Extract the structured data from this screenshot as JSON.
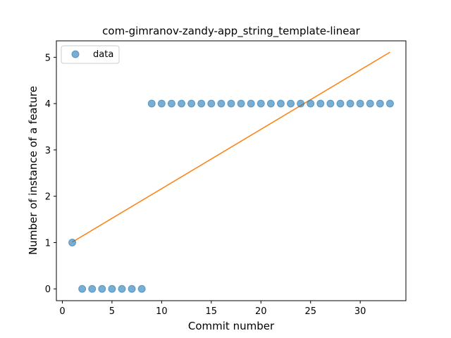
{
  "chart_data": {
    "type": "scatter",
    "title": "com-gimranov-zandy-app_string_template-linear",
    "xlabel": "Commit number",
    "ylabel": "Number of instance of a feature",
    "xlim": [
      -0.6,
      34.6
    ],
    "ylim": [
      -0.255,
      5.355
    ],
    "xticks": [
      0,
      5,
      10,
      15,
      20,
      25,
      30
    ],
    "yticks": [
      0,
      1,
      2,
      3,
      4,
      5
    ],
    "grid": false,
    "legend_position": "top-left",
    "series": [
      {
        "name": "data",
        "kind": "scatter",
        "color": "#1f77b4",
        "x": [
          1,
          2,
          3,
          4,
          5,
          6,
          7,
          8,
          9,
          10,
          11,
          12,
          13,
          14,
          15,
          16,
          17,
          18,
          19,
          20,
          21,
          22,
          23,
          24,
          25,
          26,
          27,
          28,
          29,
          30,
          31,
          32,
          33
        ],
        "y": [
          1,
          0,
          0,
          0,
          0,
          0,
          0,
          0,
          4,
          4,
          4,
          4,
          4,
          4,
          4,
          4,
          4,
          4,
          4,
          4,
          4,
          4,
          4,
          4,
          4,
          4,
          4,
          4,
          4,
          4,
          4,
          4,
          4
        ]
      },
      {
        "kind": "line",
        "color": "#ff7f0e",
        "x": [
          1,
          33
        ],
        "y": [
          1.01,
          5.11
        ]
      }
    ]
  }
}
